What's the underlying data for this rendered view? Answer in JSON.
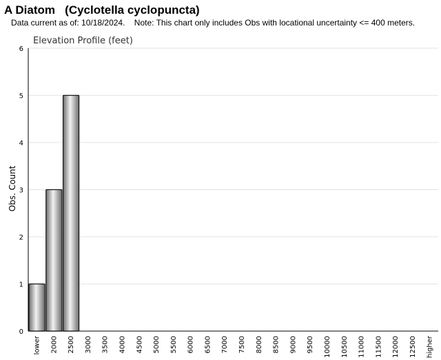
{
  "header": {
    "title": "A Diatom   (Cyclotella cyclopuncta)",
    "subtitle": "Data current as of: 10/18/2024.    Note: This chart only includes Obs with locational uncertainty <= 400 meters."
  },
  "chart_data": {
    "type": "bar",
    "title": "Elevation Profile (feet)",
    "xlabel": "",
    "ylabel": "Obs. Count",
    "categories": [
      "lower",
      "2000",
      "2500",
      "3000",
      "3500",
      "4000",
      "4500",
      "5000",
      "5500",
      "6000",
      "6500",
      "7000",
      "7500",
      "8000",
      "8500",
      "9000",
      "9500",
      "10000",
      "10500",
      "11000",
      "11500",
      "12000",
      "12500",
      "higher"
    ],
    "values": [
      1,
      3,
      5,
      0,
      0,
      0,
      0,
      0,
      0,
      0,
      0,
      0,
      0,
      0,
      0,
      0,
      0,
      0,
      0,
      0,
      0,
      0,
      0,
      0
    ],
    "yticks": [
      0,
      1,
      2,
      3,
      4,
      5,
      6
    ],
    "ylim": [
      0,
      6
    ],
    "grid": true,
    "legend": "none",
    "colors": {
      "bar_fill_dark": "#6e6e6e",
      "bar_fill_light": "#f2f2f2",
      "bar_stroke": "#1a1a1a",
      "grid": "#e3e3e3",
      "axis": "#000000"
    }
  }
}
